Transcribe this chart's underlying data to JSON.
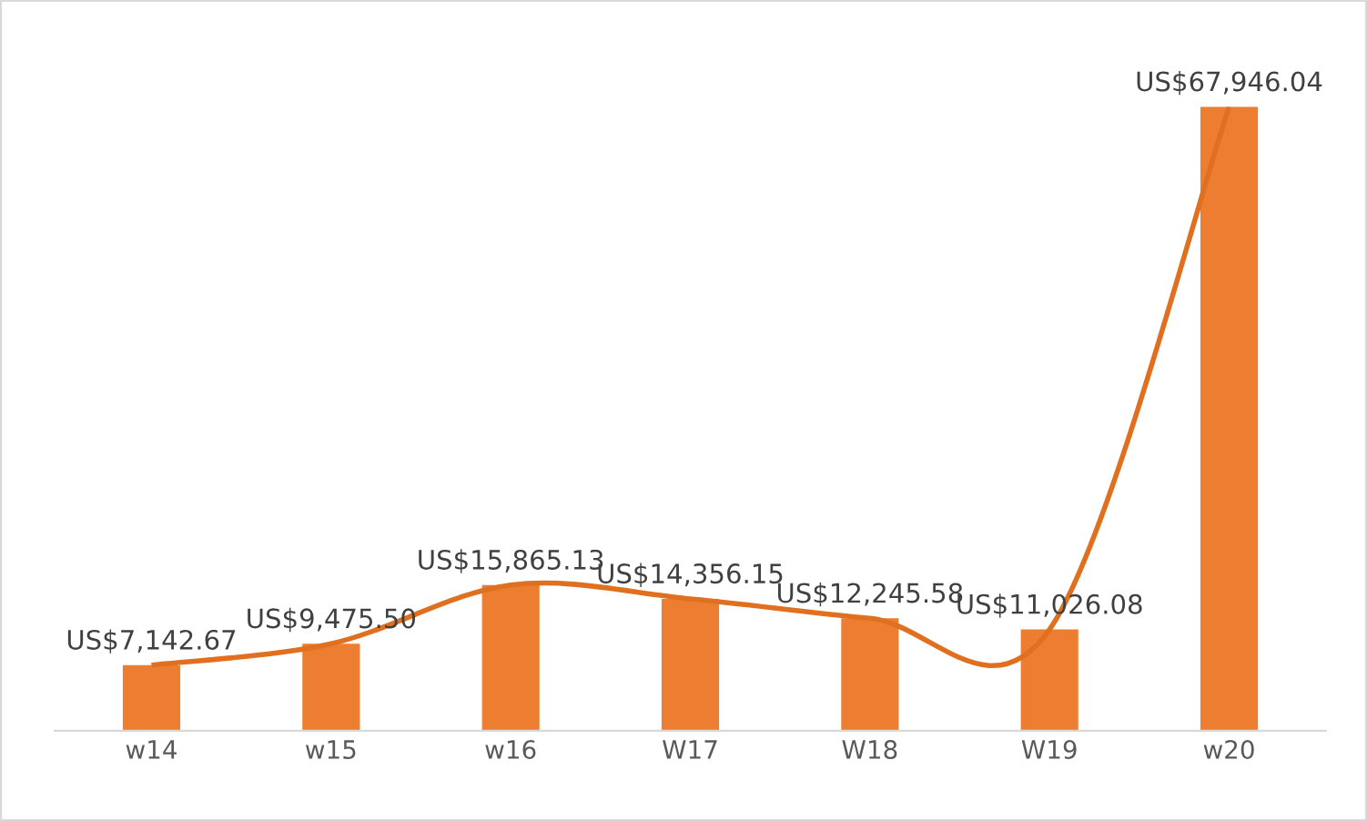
{
  "chart_data": {
    "type": "bar",
    "categories": [
      "w14",
      "w15",
      "w16",
      "W17",
      "W18",
      "W19",
      "w20"
    ],
    "series": [
      {
        "color": "#ed7d31",
        "values": [
          7142.67,
          9475.5,
          15865.13,
          14356.15,
          12245.58,
          11026.08,
          67946.04
        ],
        "value_labels": [
          "US$7,142.67",
          "US$9,475.50",
          "US$15,865.13",
          "US$14,356.15",
          "US$12,245.58",
          "US$11,026.08",
          "US$67,946.04"
        ]
      },
      {
        "type": "line",
        "color": "#e0701f",
        "values": [
          7142.67,
          9475.5,
          15865.13,
          14356.15,
          12245.58,
          11026.08,
          67946.04
        ]
      }
    ],
    "grid": false,
    "legend": false,
    "tick_labels": "x",
    "marker": "none",
    "line_style": "solid"
  }
}
